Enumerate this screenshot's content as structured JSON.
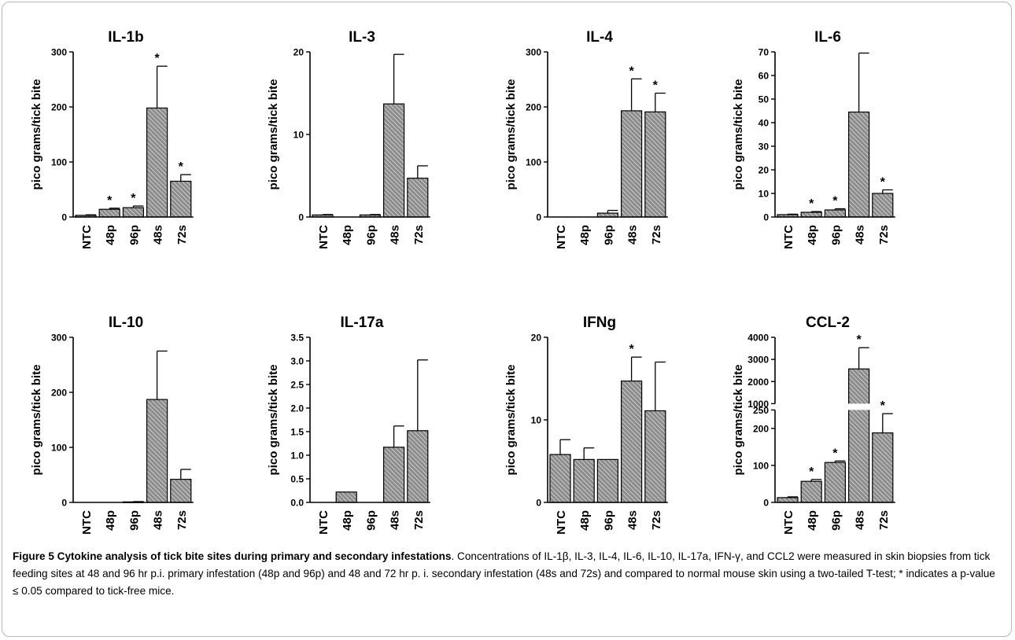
{
  "chart_data": [
    {
      "type": "bar",
      "title": "IL-1b",
      "ylabel": "pico grams/tick bite",
      "categories": [
        "NTC",
        "48p",
        "96p",
        "48s",
        "72s"
      ],
      "values": [
        3,
        14,
        17,
        198,
        65
      ],
      "errors": [
        1,
        2,
        3,
        76,
        12
      ],
      "significant": [
        false,
        true,
        true,
        true,
        true
      ],
      "ylim": [
        0,
        300
      ],
      "yticks": [
        "0",
        "100",
        "200",
        "300"
      ]
    },
    {
      "type": "bar",
      "title": "IL-3",
      "ylabel": "pico grams/tick bite",
      "categories": [
        "NTC",
        "48p",
        "96p",
        "48s",
        "72s"
      ],
      "values": [
        0.25,
        0,
        0.25,
        13.7,
        4.7
      ],
      "errors": [
        0.05,
        0,
        0.05,
        6.0,
        1.5
      ],
      "significant": [
        false,
        false,
        false,
        false,
        false
      ],
      "ylim": [
        0,
        20
      ],
      "yticks": [
        "0",
        "10",
        "20"
      ]
    },
    {
      "type": "bar",
      "title": "IL-4",
      "ylabel": "pico grams/tick bite",
      "categories": [
        "NTC",
        "48p",
        "96p",
        "48s",
        "72s"
      ],
      "values": [
        0,
        0,
        7,
        193,
        191
      ],
      "errors": [
        0,
        0,
        5,
        58,
        34
      ],
      "significant": [
        false,
        false,
        false,
        true,
        true
      ],
      "ylim": [
        0,
        300
      ],
      "yticks": [
        "0",
        "100",
        "200",
        "300"
      ]
    },
    {
      "type": "bar",
      "title": "IL-6",
      "ylabel": "pico grams/tick bite",
      "categories": [
        "NTC",
        "48p",
        "96p",
        "48s",
        "72s"
      ],
      "values": [
        1,
        2,
        3,
        44.5,
        10
      ],
      "errors": [
        0.2,
        0.3,
        0.5,
        25,
        1.5
      ],
      "significant": [
        false,
        true,
        true,
        false,
        true
      ],
      "ylim": [
        0,
        70
      ],
      "yticks": [
        "0",
        "10",
        "20",
        "30",
        "40",
        "50",
        "60",
        "70"
      ]
    },
    {
      "type": "bar",
      "title": "IL-10",
      "ylabel": "pico grams/tick bite",
      "categories": [
        "NTC",
        "48p",
        "96p",
        "48s",
        "72s"
      ],
      "values": [
        0,
        0,
        1,
        187,
        42
      ],
      "errors": [
        0,
        0,
        0.5,
        88,
        18
      ],
      "significant": [
        false,
        false,
        false,
        false,
        false
      ],
      "ylim": [
        0,
        300
      ],
      "yticks": [
        "0",
        "100",
        "200",
        "300"
      ]
    },
    {
      "type": "bar",
      "title": "IL-17a",
      "ylabel": "pico grams/tick bite",
      "categories": [
        "NTC",
        "48p",
        "96p",
        "48s",
        "72s"
      ],
      "values": [
        0,
        0.22,
        0,
        1.17,
        1.52
      ],
      "errors": [
        0,
        0,
        0,
        0.45,
        1.5
      ],
      "significant": [
        false,
        false,
        false,
        false,
        false
      ],
      "ylim": [
        0,
        3.5
      ],
      "yticks": [
        "0.0",
        "0.5",
        "1.0",
        "1.5",
        "2.0",
        "2.5",
        "3.0",
        "3.5"
      ]
    },
    {
      "type": "bar",
      "title": "IFNg",
      "ylabel": "pico grams/tick bite",
      "categories": [
        "NTC",
        "48p",
        "96p",
        "48s",
        "72s"
      ],
      "values": [
        5.8,
        5.2,
        5.2,
        14.7,
        11.1
      ],
      "errors": [
        1.8,
        1.4,
        0,
        2.9,
        5.9
      ],
      "significant": [
        false,
        false,
        false,
        true,
        false
      ],
      "ylim": [
        0,
        20
      ],
      "yticks": [
        "0",
        "10",
        "20"
      ]
    },
    {
      "type": "bar",
      "title": "CCL-2",
      "ylabel": "pico grams/tick bite",
      "categories": [
        "NTC",
        "48p",
        "96p",
        "48s",
        "72s"
      ],
      "values": [
        13,
        57,
        108,
        2570,
        188
      ],
      "errors": [
        2,
        5,
        4,
        960,
        52
      ],
      "significant": [
        false,
        true,
        true,
        true,
        true
      ],
      "axis_break": [
        250,
        1000
      ],
      "ylim": [
        0,
        4000
      ],
      "yticks": [
        "0",
        "100",
        "200",
        "250",
        "1000",
        "2000",
        "3000",
        "4000"
      ]
    }
  ],
  "caption": {
    "label": "Figure 5 Cytokine analysis of tick bite sites during primary and secondary infestations",
    "text": ". Concentrations of IL-1β, IL-3, IL-4, IL-6, IL-10, IL-17a, IFN-γ, and CCL2 were measured in skin biopsies from tick feeding sites at 48 and 96 hr p.i. primary infestation (48p and 96p) and 48 and 72 hr p. i. secondary infestation (48s and 72s) and compared to normal mouse skin using a two-tailed T-test; * indicates a p-value ≤ 0.05 compared to tick-free mice."
  },
  "significance_marker": "*",
  "colors": {
    "bar_fill": "#8c8c8c",
    "hatch": "#ffffff",
    "axis": "#000000",
    "frame": "#b8b8b8"
  }
}
